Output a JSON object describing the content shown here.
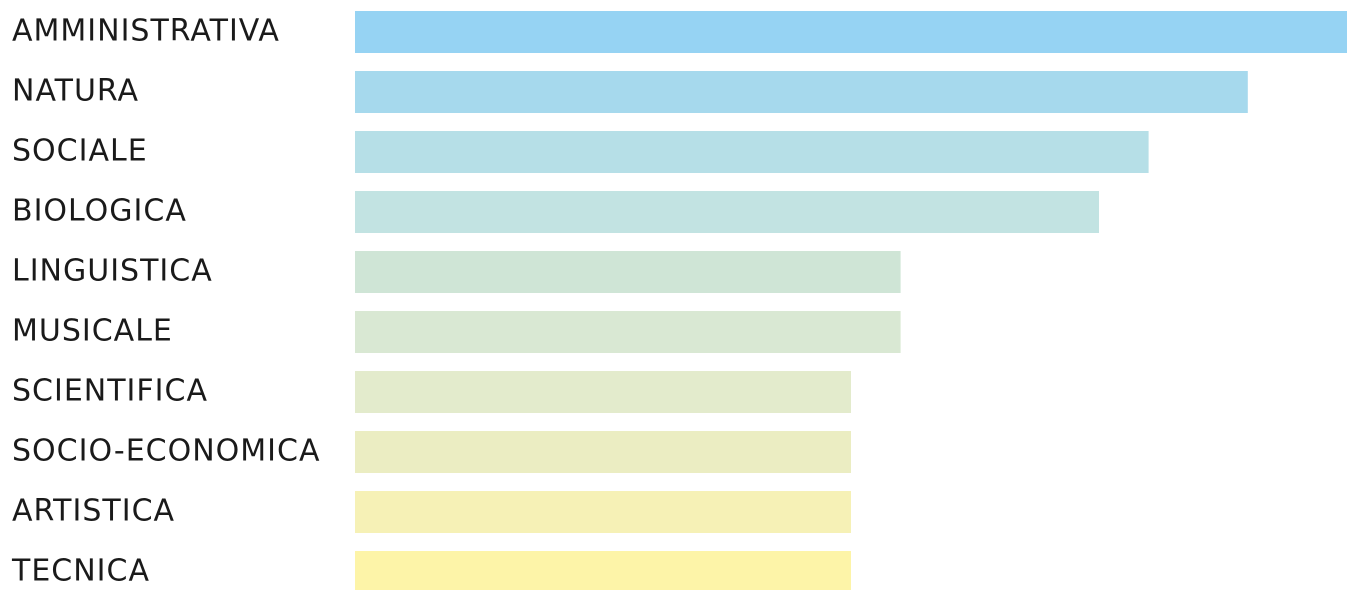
{
  "chart_data": {
    "type": "bar",
    "orientation": "horizontal",
    "categories": [
      "AMMINISTRATIVA",
      "NATURA",
      "SOCIALE",
      "BIOLOGICA",
      "LINGUISTICA",
      "MUSICALE",
      "SCIENTIFICA",
      "SOCIO-ECONOMICA",
      "ARTISTICA",
      "TECNICA"
    ],
    "values": [
      20,
      18,
      16,
      15,
      11,
      11,
      10,
      10,
      10,
      10
    ],
    "colors": [
      "#96d3f3",
      "#a6d9ed",
      "#b6dfe7",
      "#c2e3e2",
      "#cfe5d6",
      "#d9e8d3",
      "#e3ebcc",
      "#ebedc2",
      "#f6f1b6",
      "#fdf4a8"
    ],
    "xlim": [
      0,
      20
    ],
    "title": "",
    "xlabel": "",
    "ylabel": "",
    "grid": false,
    "legend": "none"
  }
}
